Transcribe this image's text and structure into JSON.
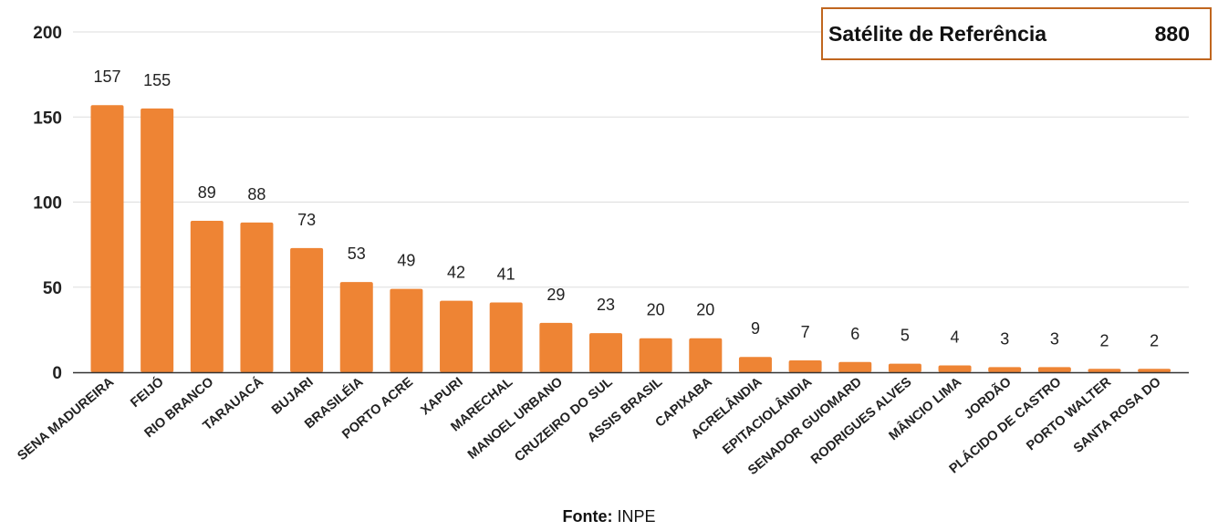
{
  "chart_data": {
    "type": "bar",
    "categories": [
      "SENA MADUREIRA",
      "FEIJÓ",
      "RIO BRANCO",
      "TARAUACÁ",
      "BUJARI",
      "BRASILÉIA",
      "PORTO ACRE",
      "XAPURI",
      "MARECHAL",
      "MANOEL URBANO",
      "CRUZEIRO DO SUL",
      "ASSIS BRASIL",
      "CAPIXABA",
      "ACRELÂNDIA",
      "EPITACIOLÂNDIA",
      "SENADOR GUIOMARD",
      "RODRIGUES ALVES",
      "MÂNCIO LIMA",
      "JORDÃO",
      "PLÁCIDO DE CASTRO",
      "PORTO WALTER",
      "SANTA ROSA DO"
    ],
    "values": [
      157,
      155,
      89,
      88,
      73,
      53,
      49,
      42,
      41,
      29,
      23,
      20,
      20,
      9,
      7,
      6,
      5,
      4,
      3,
      3,
      2,
      2
    ],
    "yticks": [
      "0",
      "50",
      "100",
      "150",
      "200"
    ],
    "ylim": [
      0,
      200
    ],
    "grid": true,
    "bar_color": "#EE8434"
  },
  "reference_box": {
    "label": "Satélite de Referência",
    "value": "880"
  },
  "source": {
    "label": "Fonte:",
    "value": "INPE"
  }
}
